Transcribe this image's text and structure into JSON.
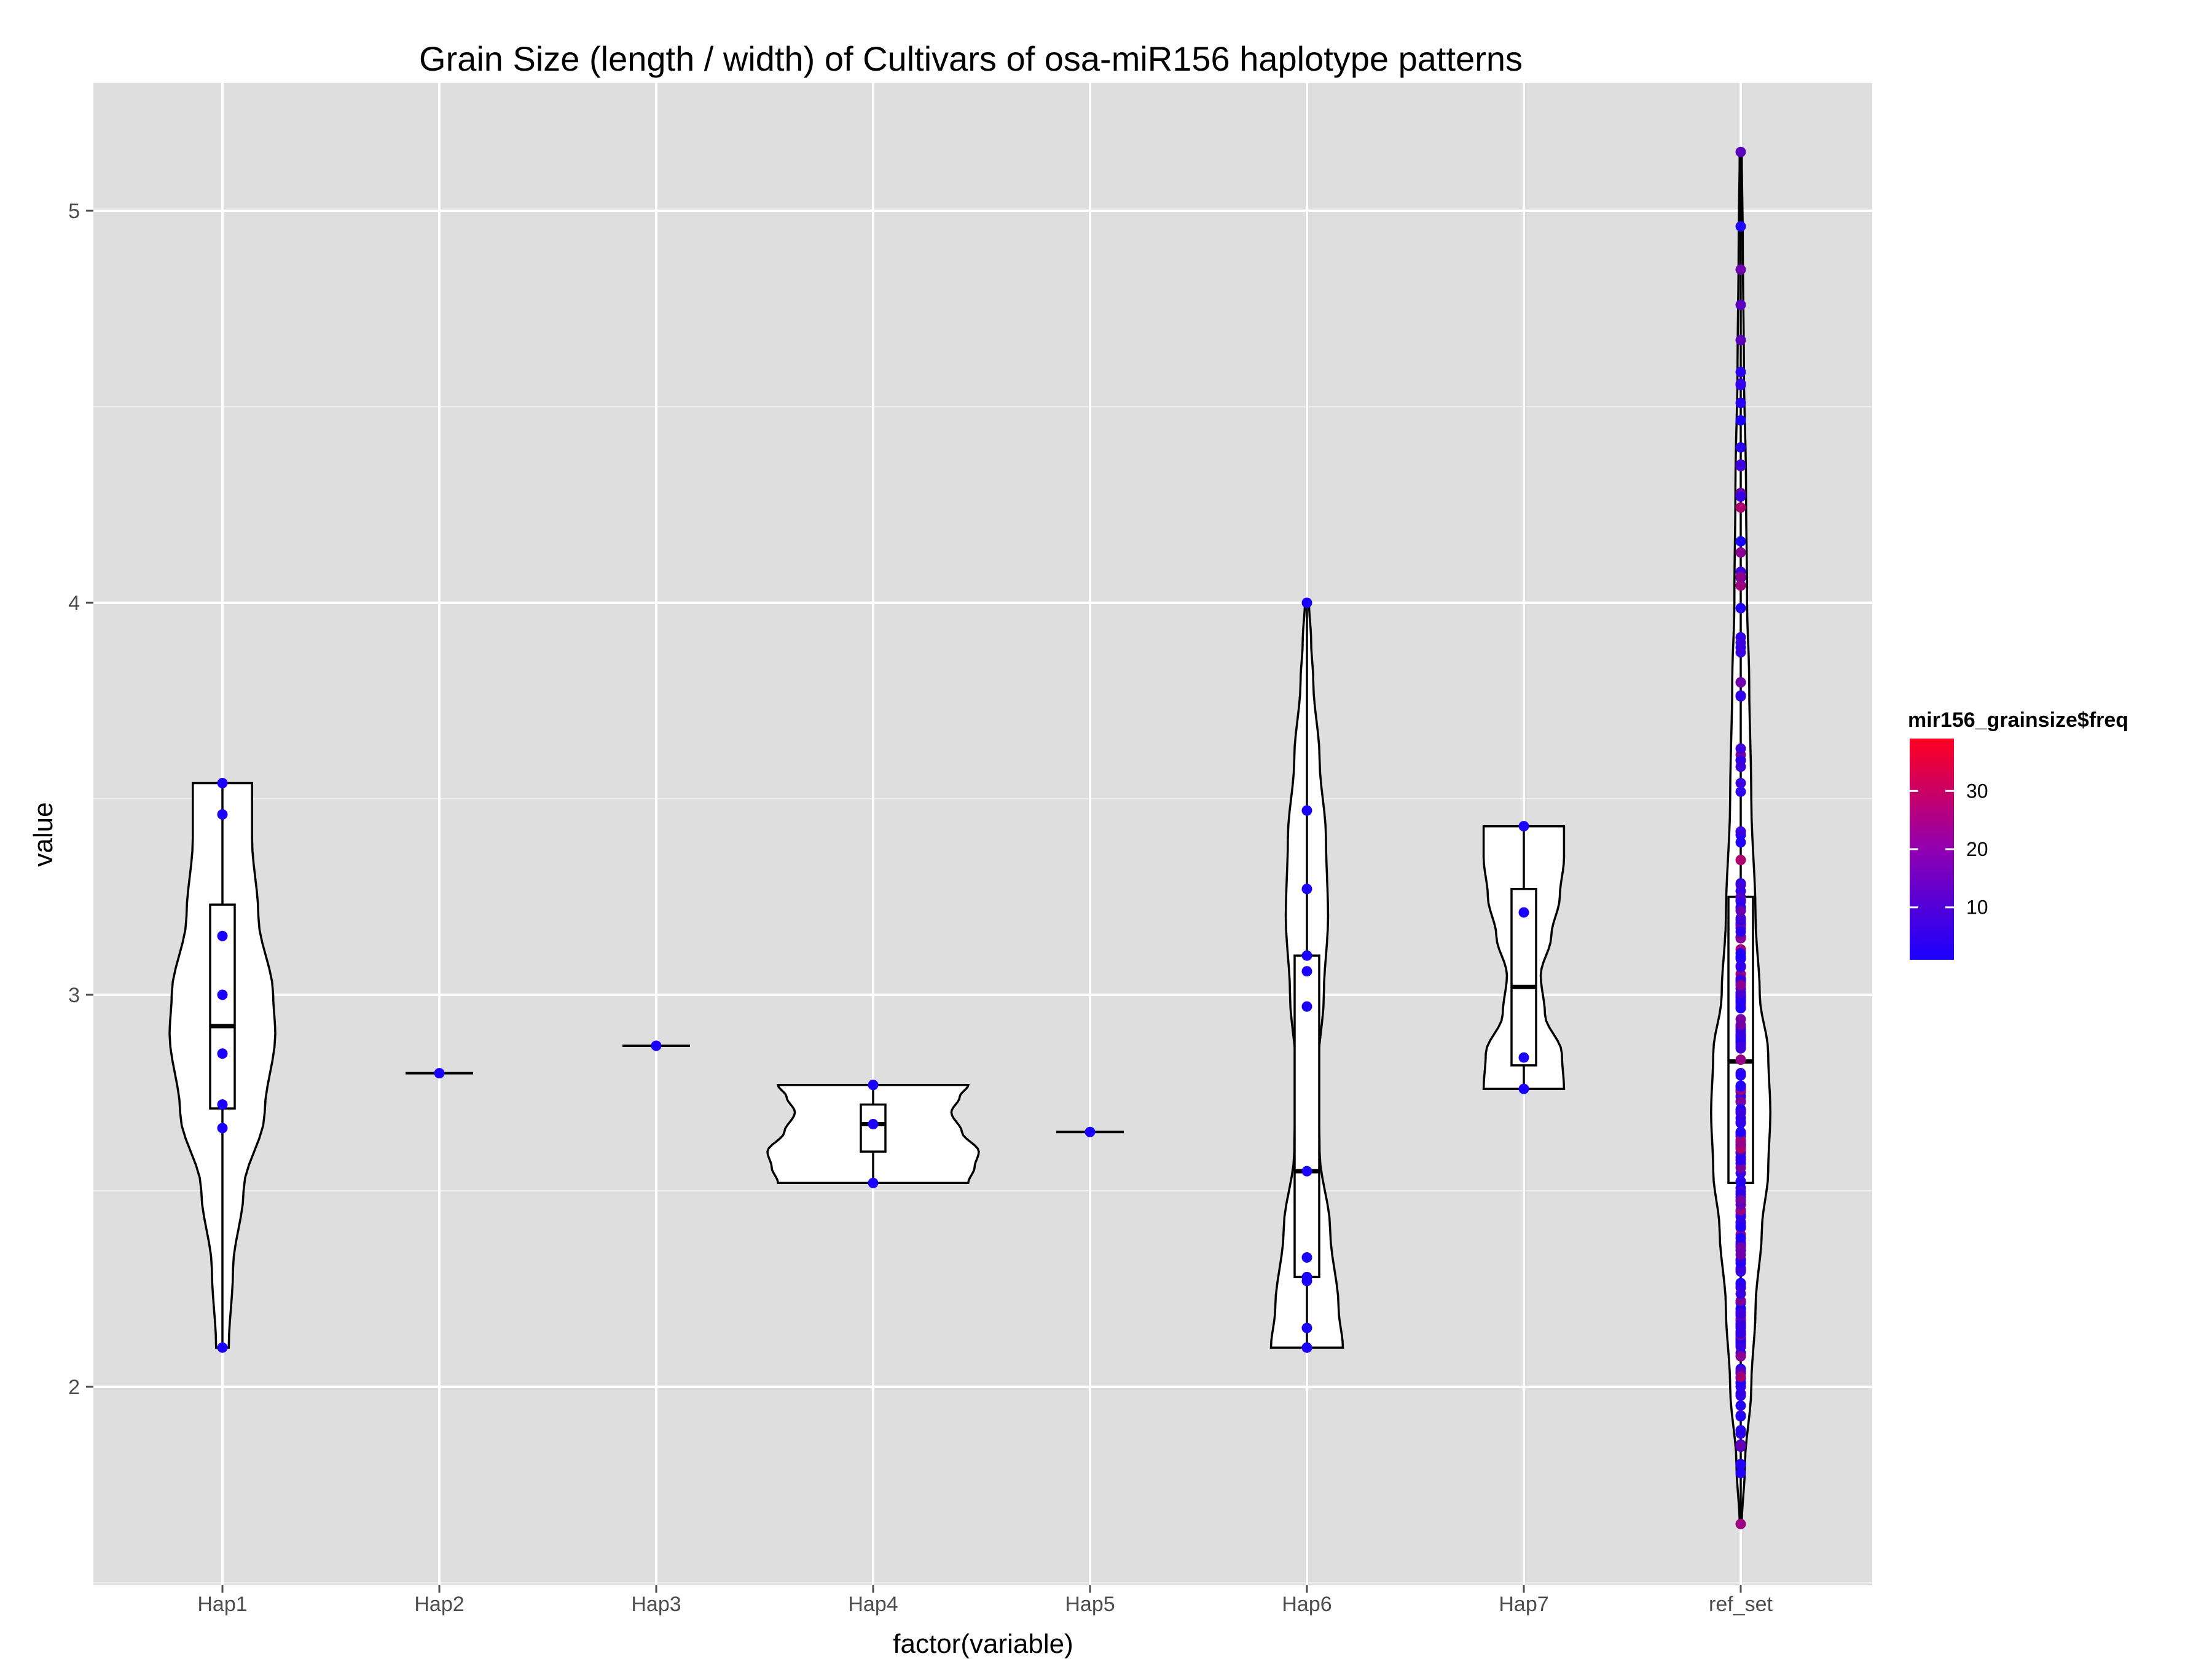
{
  "chart_data": {
    "type": "violin",
    "title": "Grain Size (length / width) of Cultivars of osa-miR156 haplotype patterns",
    "xlabel": "factor(variable)",
    "ylabel": "value",
    "ylim": [
      1.5,
      5.3
    ],
    "yticks": [
      2,
      3,
      4,
      5
    ],
    "grid": true,
    "colors": {
      "panel": "#dedede",
      "grid": "#ffffff",
      "violin_fill": "#ffffff",
      "outline": "#000000",
      "low": "#1a00ff",
      "high": "#ff0020"
    },
    "legend": {
      "title": "mir156_grainsize$freq",
      "position": "right",
      "range": [
        1,
        39
      ],
      "ticks": [
        10,
        20,
        30
      ]
    },
    "categories": [
      "Hap1",
      "Hap2",
      "Hap3",
      "Hap4",
      "Hap5",
      "Hap6",
      "Hap7",
      "ref_set"
    ],
    "groups": [
      {
        "name": "Hap1",
        "points": [
          2.1,
          2.66,
          2.72,
          2.85,
          3.0,
          3.15,
          3.46,
          3.54
        ],
        "box": [
          2.71,
          2.92,
          3.23
        ],
        "range": [
          2.1,
          3.54
        ],
        "shape": [
          [
            2.1,
            0.06
          ],
          [
            2.3,
            0.1
          ],
          [
            2.5,
            0.2
          ],
          [
            2.7,
            0.4
          ],
          [
            2.9,
            0.5
          ],
          [
            3.0,
            0.48
          ],
          [
            3.2,
            0.34
          ],
          [
            3.4,
            0.28
          ],
          [
            3.5,
            0.28
          ],
          [
            3.54,
            0.28
          ]
        ]
      },
      {
        "name": "Hap2",
        "points": [
          2.8
        ],
        "box": [
          2.8,
          2.8,
          2.8
        ],
        "range": [
          2.8,
          2.8
        ],
        "shape": []
      },
      {
        "name": "Hap3",
        "points": [
          2.87
        ],
        "box": [
          2.87,
          2.87,
          2.87
        ],
        "range": [
          2.87,
          2.87
        ],
        "shape": []
      },
      {
        "name": "Hap4",
        "points": [
          2.52,
          2.67,
          2.77
        ],
        "box": [
          2.6,
          2.67,
          2.72
        ],
        "range": [
          2.52,
          2.77
        ],
        "shape": [
          [
            2.52,
            0.9
          ],
          [
            2.56,
            0.96
          ],
          [
            2.6,
            1.0
          ],
          [
            2.65,
            0.84
          ],
          [
            2.7,
            0.74
          ],
          [
            2.74,
            0.82
          ],
          [
            2.77,
            0.9
          ]
        ]
      },
      {
        "name": "Hap5",
        "points": [
          2.65
        ],
        "box": [
          2.65,
          2.65,
          2.65
        ],
        "range": [
          2.65,
          2.65
        ],
        "shape": []
      },
      {
        "name": "Hap6",
        "points": [
          2.1,
          2.1,
          2.15,
          2.27,
          2.28,
          2.33,
          2.55,
          2.97,
          3.06,
          3.1,
          3.27,
          3.47,
          4.0
        ],
        "box": [
          2.28,
          2.55,
          3.1
        ],
        "range": [
          2.1,
          4.0
        ],
        "shape": [
          [
            2.1,
            0.34
          ],
          [
            2.2,
            0.3
          ],
          [
            2.4,
            0.22
          ],
          [
            2.6,
            0.12
          ],
          [
            2.8,
            0.1
          ],
          [
            3.0,
            0.16
          ],
          [
            3.2,
            0.2
          ],
          [
            3.4,
            0.18
          ],
          [
            3.6,
            0.12
          ],
          [
            3.8,
            0.06
          ],
          [
            3.9,
            0.04
          ],
          [
            4.0,
            0.02
          ]
        ]
      },
      {
        "name": "Hap7",
        "points": [
          2.76,
          2.84,
          3.21,
          3.43
        ],
        "box": [
          2.82,
          3.02,
          3.27
        ],
        "range": [
          2.76,
          3.43
        ],
        "shape": [
          [
            2.76,
            0.38
          ],
          [
            2.85,
            0.36
          ],
          [
            2.95,
            0.2
          ],
          [
            3.05,
            0.16
          ],
          [
            3.15,
            0.26
          ],
          [
            3.25,
            0.34
          ],
          [
            3.35,
            0.38
          ],
          [
            3.43,
            0.38
          ]
        ]
      },
      {
        "name": "ref_set",
        "points_range": [
          1.65,
          5.15
        ],
        "box": [
          2.52,
          2.83,
          3.25
        ],
        "range": [
          1.65,
          5.15
        ],
        "shape": [
          [
            1.65,
            0.01
          ],
          [
            1.8,
            0.04
          ],
          [
            2.0,
            0.1
          ],
          [
            2.2,
            0.14
          ],
          [
            2.4,
            0.2
          ],
          [
            2.55,
            0.26
          ],
          [
            2.7,
            0.28
          ],
          [
            2.85,
            0.26
          ],
          [
            3.0,
            0.18
          ],
          [
            3.2,
            0.14
          ],
          [
            3.5,
            0.1
          ],
          [
            3.8,
            0.08
          ],
          [
            4.0,
            0.06
          ],
          [
            4.3,
            0.05
          ],
          [
            4.6,
            0.03
          ],
          [
            4.9,
            0.02
          ],
          [
            5.15,
            0.01
          ]
        ]
      }
    ]
  }
}
